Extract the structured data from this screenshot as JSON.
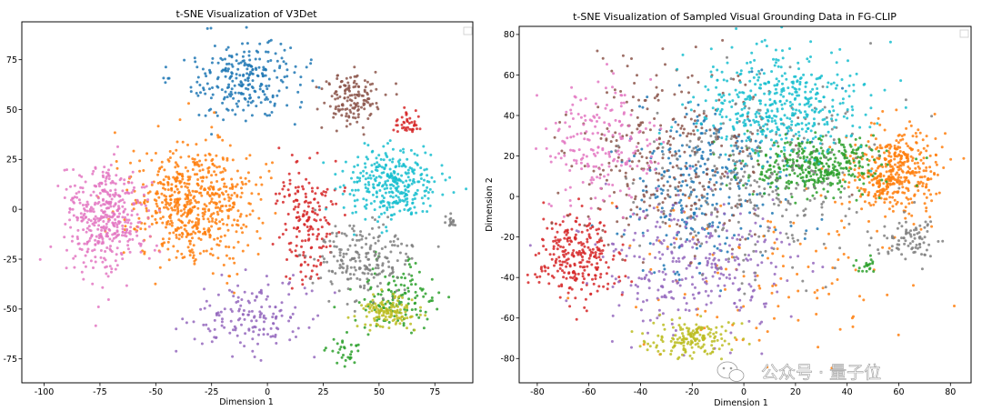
{
  "chart_data": [
    {
      "type": "scatter",
      "title": "t-SNE Visualization of V3Det",
      "xlabel": "Dimension 1",
      "ylabel": "",
      "xlim": [
        -110,
        92
      ],
      "ylim": [
        -87,
        94
      ],
      "xticks": [
        "-100",
        "-75",
        "-50",
        "-25",
        "0",
        "25",
        "50",
        "75"
      ],
      "xtick_values": [
        -100,
        -75,
        -50,
        -25,
        0,
        25,
        50,
        75
      ],
      "yticks": [
        "-75",
        "-50",
        "-25",
        "0",
        "25",
        "50",
        "75"
      ],
      "ytick_values": [
        -75,
        -50,
        -25,
        0,
        25,
        50,
        75
      ],
      "legend": "top-right (empty)",
      "grid": false,
      "series": [
        {
          "color": "#1f77b4",
          "clusters": [
            {
              "cx": -10,
              "cy": 65,
              "sx": 17,
              "sy": 12,
              "n": 260
            }
          ]
        },
        {
          "color": "#ff7f0e",
          "clusters": [
            {
              "cx": -33,
              "cy": 3,
              "sx": 18,
              "sy": 20,
              "n": 620
            }
          ]
        },
        {
          "color": "#2ca02c",
          "clusters": [
            {
              "cx": 58,
              "cy": -45,
              "sx": 12,
              "sy": 14,
              "n": 130
            },
            {
              "cx": 35,
              "cy": -70,
              "sx": 5,
              "sy": 5,
              "n": 30
            }
          ]
        },
        {
          "color": "#d62728",
          "clusters": [
            {
              "cx": 17,
              "cy": -5,
              "sx": 8,
              "sy": 22,
              "n": 180
            },
            {
              "cx": 63,
              "cy": 43,
              "sx": 5,
              "sy": 4,
              "n": 40
            }
          ]
        },
        {
          "color": "#9467bd",
          "clusters": [
            {
              "cx": -5,
              "cy": -55,
              "sx": 18,
              "sy": 12,
              "n": 160
            }
          ]
        },
        {
          "color": "#8c564b",
          "clusters": [
            {
              "cx": 37,
              "cy": 55,
              "sx": 9,
              "sy": 9,
              "n": 150
            }
          ]
        },
        {
          "color": "#e377c2",
          "clusters": [
            {
              "cx": -72,
              "cy": -5,
              "sx": 12,
              "sy": 18,
              "n": 420
            }
          ]
        },
        {
          "color": "#7f7f7f",
          "clusters": [
            {
              "cx": 43,
              "cy": -25,
              "sx": 14,
              "sy": 12,
              "n": 210
            },
            {
              "cx": 82,
              "cy": -6,
              "sx": 2,
              "sy": 3,
              "n": 15
            }
          ]
        },
        {
          "color": "#bcbd22",
          "clusters": [
            {
              "cx": 55,
              "cy": -52,
              "sx": 9,
              "sy": 5,
              "n": 130
            }
          ]
        },
        {
          "color": "#17becf",
          "clusters": [
            {
              "cx": 55,
              "cy": 12,
              "sx": 14,
              "sy": 12,
              "n": 330
            }
          ]
        }
      ]
    },
    {
      "type": "scatter",
      "title": "t-SNE Visualization of Sampled Visual Grounding Data in FG-CLIP",
      "xlabel": "Dimension 1",
      "ylabel": "Dimension 2",
      "xlim": [
        -87,
        88
      ],
      "ylim": [
        -92,
        84
      ],
      "xticks": [
        "-80",
        "-60",
        "-40",
        "-20",
        "0",
        "20",
        "40",
        "60",
        "80"
      ],
      "xtick_values": [
        -80,
        -60,
        -40,
        -20,
        0,
        20,
        40,
        60,
        80
      ],
      "yticks": [
        "-80",
        "-60",
        "-40",
        "-20",
        "0",
        "20",
        "40",
        "60",
        "80"
      ],
      "ytick_values": [
        -80,
        -60,
        -40,
        -20,
        0,
        20,
        40,
        60,
        80
      ],
      "legend": "top-right (empty)",
      "grid": false,
      "series": [
        {
          "color": "#1f77b4",
          "clusters": [
            {
              "cx": -15,
              "cy": 5,
              "sx": 22,
              "sy": 28,
              "n": 300
            }
          ]
        },
        {
          "color": "#ff7f0e",
          "clusters": [
            {
              "cx": 58,
              "cy": 12,
              "sx": 12,
              "sy": 14,
              "n": 420
            },
            {
              "cx": 10,
              "cy": -40,
              "sx": 40,
              "sy": 25,
              "n": 120
            }
          ]
        },
        {
          "color": "#2ca02c",
          "clusters": [
            {
              "cx": 28,
              "cy": 15,
              "sx": 18,
              "sy": 10,
              "n": 380
            },
            {
              "cx": 48,
              "cy": -35,
              "sx": 3,
              "sy": 3,
              "n": 20
            }
          ]
        },
        {
          "color": "#d62728",
          "clusters": [
            {
              "cx": -65,
              "cy": -30,
              "sx": 10,
              "sy": 14,
              "n": 260
            }
          ]
        },
        {
          "color": "#9467bd",
          "clusters": [
            {
              "cx": -20,
              "cy": -35,
              "sx": 25,
              "sy": 22,
              "n": 300
            }
          ]
        },
        {
          "color": "#8c564b",
          "clusters": [
            {
              "cx": -30,
              "cy": 20,
              "sx": 25,
              "sy": 30,
              "n": 300
            }
          ]
        },
        {
          "color": "#e377c2",
          "clusters": [
            {
              "cx": -55,
              "cy": 25,
              "sx": 14,
              "sy": 20,
              "n": 200
            }
          ]
        },
        {
          "color": "#7f7f7f",
          "clusters": [
            {
              "cx": 5,
              "cy": 5,
              "sx": 30,
              "sy": 30,
              "n": 300
            },
            {
              "cx": 65,
              "cy": -22,
              "sx": 8,
              "sy": 6,
              "n": 80
            }
          ]
        },
        {
          "color": "#bcbd22",
          "clusters": [
            {
              "cx": -20,
              "cy": -70,
              "sx": 10,
              "sy": 7,
              "n": 170
            }
          ]
        },
        {
          "color": "#17becf",
          "clusters": [
            {
              "cx": 15,
              "cy": 45,
              "sx": 22,
              "sy": 18,
              "n": 450
            }
          ]
        }
      ]
    }
  ],
  "watermark": {
    "text": "公众号 · 量子位",
    "icon": "wechat-icon"
  }
}
